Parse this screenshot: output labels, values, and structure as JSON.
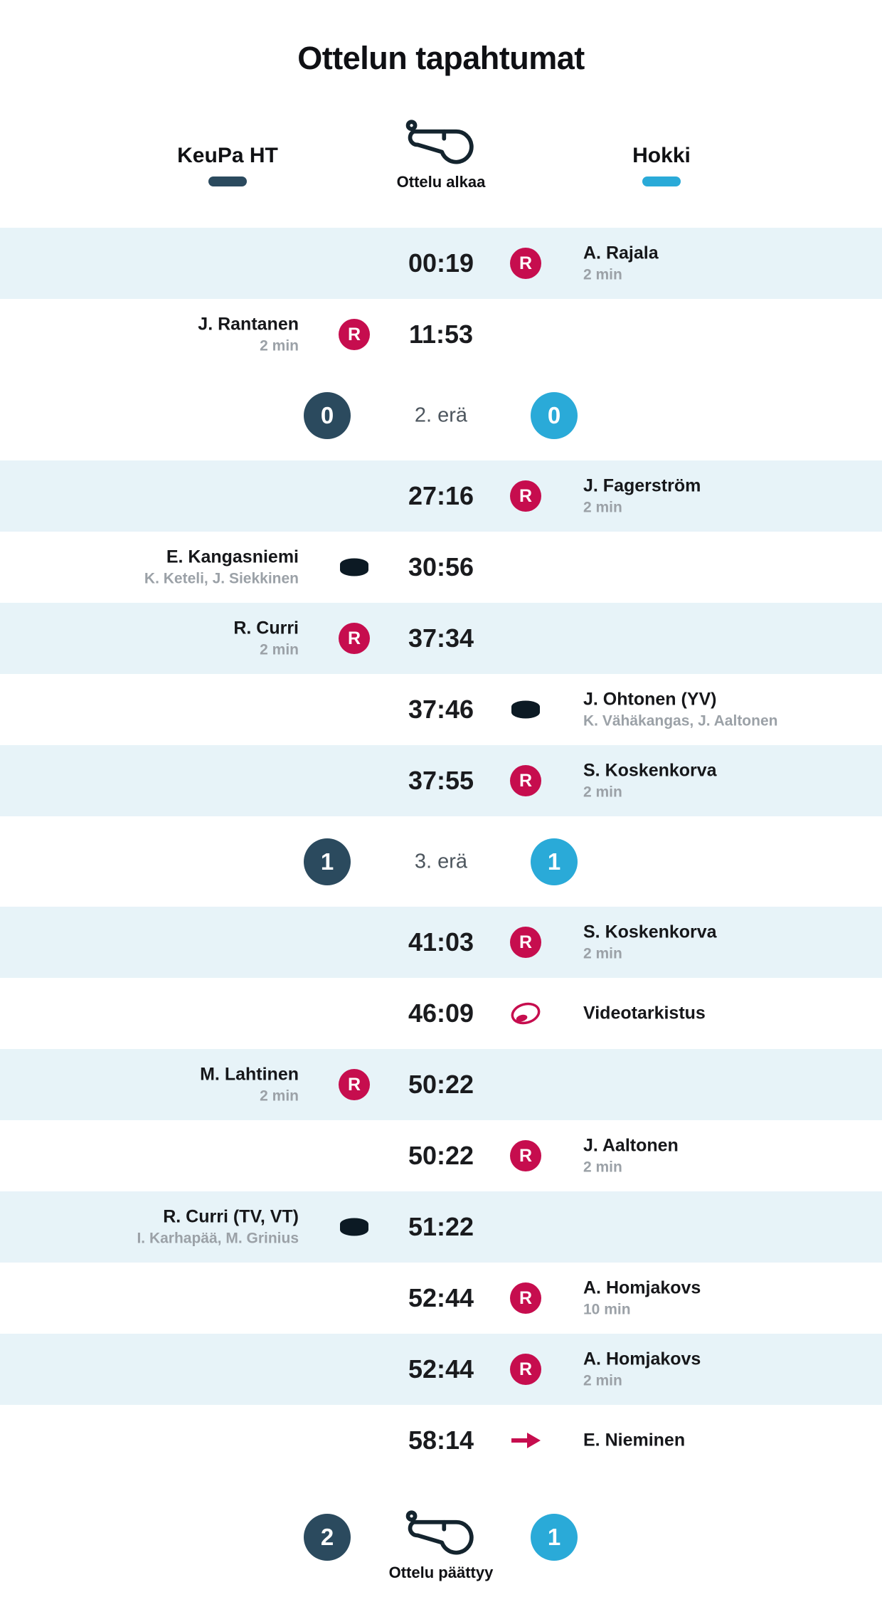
{
  "title": "Ottelun tapahtumat",
  "header": {
    "home_team": "KeuPa HT",
    "away_team": "Hokki",
    "start_label": "Ottelu alkaa"
  },
  "footer": {
    "home_score": "2",
    "away_score": "1",
    "end_label": "Ottelu päättyy"
  },
  "icon_labels": {
    "penalty_letter": "R"
  },
  "colors": {
    "home_team": "#2b4a5e",
    "away_team": "#2aaad8",
    "accent": "#c60d4e",
    "row_highlight": "#e7f3f8"
  },
  "events": [
    {
      "type": "event",
      "side": "away",
      "time": "00:19",
      "kind": "penalty",
      "player": "A. Rajala",
      "detail": "2 min"
    },
    {
      "type": "event",
      "side": "home",
      "time": "11:53",
      "kind": "penalty",
      "player": "J. Rantanen",
      "detail": "2 min"
    },
    {
      "type": "period",
      "label": "2. erä",
      "home_score": "0",
      "away_score": "0"
    },
    {
      "type": "event",
      "side": "away",
      "time": "27:16",
      "kind": "penalty",
      "player": "J. Fagerström",
      "detail": "2 min"
    },
    {
      "type": "event",
      "side": "home",
      "time": "30:56",
      "kind": "goal",
      "player": "E. Kangasniemi",
      "detail": "K. Keteli, J. Siekkinen"
    },
    {
      "type": "event",
      "side": "home",
      "time": "37:34",
      "kind": "penalty",
      "player": "R. Curri",
      "detail": "2 min"
    },
    {
      "type": "event",
      "side": "away",
      "time": "37:46",
      "kind": "goal",
      "player": "J. Ohtonen (YV)",
      "detail": "K. Vähäkangas, J. Aaltonen"
    },
    {
      "type": "event",
      "side": "away",
      "time": "37:55",
      "kind": "penalty",
      "player": "S. Koskenkorva",
      "detail": "2 min"
    },
    {
      "type": "period",
      "label": "3. erä",
      "home_score": "1",
      "away_score": "1"
    },
    {
      "type": "event",
      "side": "away",
      "time": "41:03",
      "kind": "penalty",
      "player": "S. Koskenkorva",
      "detail": "2 min"
    },
    {
      "type": "event",
      "side": "away",
      "time": "46:09",
      "kind": "video_review",
      "player": "Videotarkistus",
      "detail": ""
    },
    {
      "type": "event",
      "side": "home",
      "time": "50:22",
      "kind": "penalty",
      "player": "M. Lahtinen",
      "detail": "2 min"
    },
    {
      "type": "event",
      "side": "away",
      "time": "50:22",
      "kind": "penalty",
      "player": "J. Aaltonen",
      "detail": "2 min"
    },
    {
      "type": "event",
      "side": "home",
      "time": "51:22",
      "kind": "goal",
      "player": "R. Curri (TV,  VT)",
      "detail": "I. Karhapää, M. Grinius"
    },
    {
      "type": "event",
      "side": "away",
      "time": "52:44",
      "kind": "penalty",
      "player": "A. Homjakovs",
      "detail": "10 min"
    },
    {
      "type": "event",
      "side": "away",
      "time": "52:44",
      "kind": "penalty",
      "player": "A. Homjakovs",
      "detail": "2 min"
    },
    {
      "type": "event",
      "side": "away",
      "time": "58:14",
      "kind": "change",
      "player": "E. Nieminen",
      "detail": ""
    }
  ]
}
